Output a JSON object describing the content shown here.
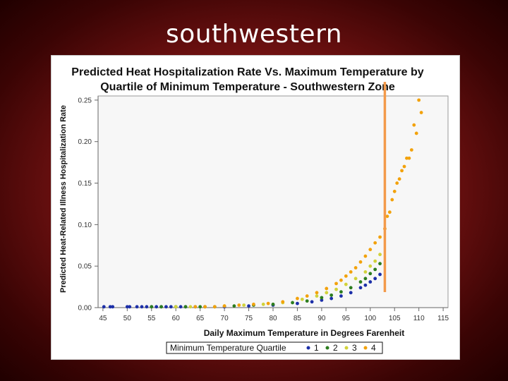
{
  "slide": {
    "title": "southwestern"
  },
  "colors": {
    "q1": "#1c2fa8",
    "q2": "#2c7d1e",
    "q3": "#d1d23a",
    "q4": "#f2a20c",
    "marker": "#f39a4a"
  },
  "chart_data": {
    "type": "scatter",
    "title_line1": "Predicted Heat Hospitalization Rate Vs. Maximum Temperature by",
    "title_line2": "Quartile of Minimum Temperature - Southwestern Zone",
    "xlabel": "Daily Maximum Temperature in Degrees Farenheit",
    "ylabel": "Predicted Heat-Related Illness Hospitalization Rate",
    "xlim": [
      44,
      116
    ],
    "ylim": [
      0,
      0.255
    ],
    "x_ticks": [
      "45",
      "50",
      "55",
      "60",
      "65",
      "70",
      "75",
      "80",
      "85",
      "90",
      "95",
      "100",
      "105",
      "110",
      "115"
    ],
    "x_tick_values": [
      45,
      50,
      55,
      60,
      65,
      70,
      75,
      80,
      85,
      90,
      95,
      100,
      105,
      110,
      115
    ],
    "y_ticks": [
      "0.00",
      "0.05",
      "0.10",
      "0.15",
      "0.20",
      "0.25"
    ],
    "y_tick_values": [
      0,
      0.05,
      0.1,
      0.15,
      0.2,
      0.25
    ],
    "legend": {
      "label": "Minimum Temperature Quartile",
      "items": [
        "1",
        "2",
        "3",
        "4"
      ],
      "position": "bottom"
    },
    "reference_line": {
      "x": 103
    },
    "series": [
      {
        "name": "1",
        "color": "#1c2fa8",
        "points": [
          [
            45.2,
            0.001
          ],
          [
            46.5,
            0.001
          ],
          [
            47,
            0.001
          ],
          [
            50,
            0.001
          ],
          [
            50.5,
            0.001
          ],
          [
            52,
            0.001
          ],
          [
            53,
            0.001
          ],
          [
            54,
            0.001
          ],
          [
            55,
            0.001
          ],
          [
            56,
            0.001
          ],
          [
            57,
            0.001
          ],
          [
            58,
            0.001
          ],
          [
            59,
            0.001
          ],
          [
            60,
            0.001
          ],
          [
            61,
            0.001
          ],
          [
            62,
            0.001
          ],
          [
            64,
            0.001
          ],
          [
            66,
            0.001
          ],
          [
            70,
            0.001
          ],
          [
            75,
            0.002
          ],
          [
            80,
            0.003
          ],
          [
            85,
            0.005
          ],
          [
            88,
            0.007
          ],
          [
            90,
            0.009
          ],
          [
            92,
            0.011
          ],
          [
            94,
            0.014
          ],
          [
            96,
            0.018
          ],
          [
            98,
            0.024
          ],
          [
            99,
            0.027
          ],
          [
            100,
            0.031
          ],
          [
            101,
            0.035
          ],
          [
            102,
            0.04
          ]
        ]
      },
      {
        "name": "2",
        "color": "#2c7d1e",
        "points": [
          [
            55,
            0.001
          ],
          [
            57,
            0.001
          ],
          [
            60,
            0.001
          ],
          [
            62,
            0.001
          ],
          [
            65,
            0.001
          ],
          [
            68,
            0.001
          ],
          [
            72,
            0.002
          ],
          [
            76,
            0.003
          ],
          [
            80,
            0.004
          ],
          [
            84,
            0.006
          ],
          [
            87,
            0.008
          ],
          [
            90,
            0.012
          ],
          [
            92,
            0.015
          ],
          [
            94,
            0.019
          ],
          [
            96,
            0.024
          ],
          [
            98,
            0.031
          ],
          [
            99,
            0.035
          ],
          [
            100,
            0.041
          ],
          [
            101,
            0.046
          ],
          [
            102,
            0.053
          ]
        ]
      },
      {
        "name": "3",
        "color": "#d1d23a",
        "points": [
          [
            60,
            0.001
          ],
          [
            63,
            0.001
          ],
          [
            66,
            0.001
          ],
          [
            70,
            0.002
          ],
          [
            74,
            0.003
          ],
          [
            78,
            0.004
          ],
          [
            82,
            0.006
          ],
          [
            86,
            0.01
          ],
          [
            89,
            0.014
          ],
          [
            91,
            0.018
          ],
          [
            93,
            0.022
          ],
          [
            95,
            0.028
          ],
          [
            97,
            0.035
          ],
          [
            99,
            0.043
          ],
          [
            100,
            0.05
          ],
          [
            101,
            0.056
          ],
          [
            102,
            0.064
          ]
        ]
      },
      {
        "name": "4",
        "color": "#f2a20c",
        "points": [
          [
            64,
            0.001
          ],
          [
            66,
            0.001
          ],
          [
            68,
            0.001
          ],
          [
            70,
            0.002
          ],
          [
            73,
            0.003
          ],
          [
            76,
            0.004
          ],
          [
            79,
            0.005
          ],
          [
            82,
            0.007
          ],
          [
            85,
            0.011
          ],
          [
            87,
            0.014
          ],
          [
            89,
            0.018
          ],
          [
            91,
            0.023
          ],
          [
            93,
            0.029
          ],
          [
            94,
            0.033
          ],
          [
            95,
            0.038
          ],
          [
            96,
            0.043
          ],
          [
            97,
            0.048
          ],
          [
            98,
            0.055
          ],
          [
            99,
            0.062
          ],
          [
            100,
            0.07
          ],
          [
            101,
            0.078
          ],
          [
            102,
            0.085
          ],
          [
            103,
            0.095
          ],
          [
            103.5,
            0.11
          ],
          [
            104,
            0.115
          ],
          [
            104.5,
            0.13
          ],
          [
            105,
            0.14
          ],
          [
            105.5,
            0.15
          ],
          [
            106,
            0.155
          ],
          [
            106.5,
            0.165
          ],
          [
            107,
            0.17
          ],
          [
            107.5,
            0.18
          ],
          [
            108,
            0.18
          ],
          [
            108.5,
            0.19
          ],
          [
            109,
            0.22
          ],
          [
            109.5,
            0.21
          ],
          [
            110,
            0.25
          ],
          [
            110.5,
            0.235
          ]
        ]
      }
    ]
  }
}
